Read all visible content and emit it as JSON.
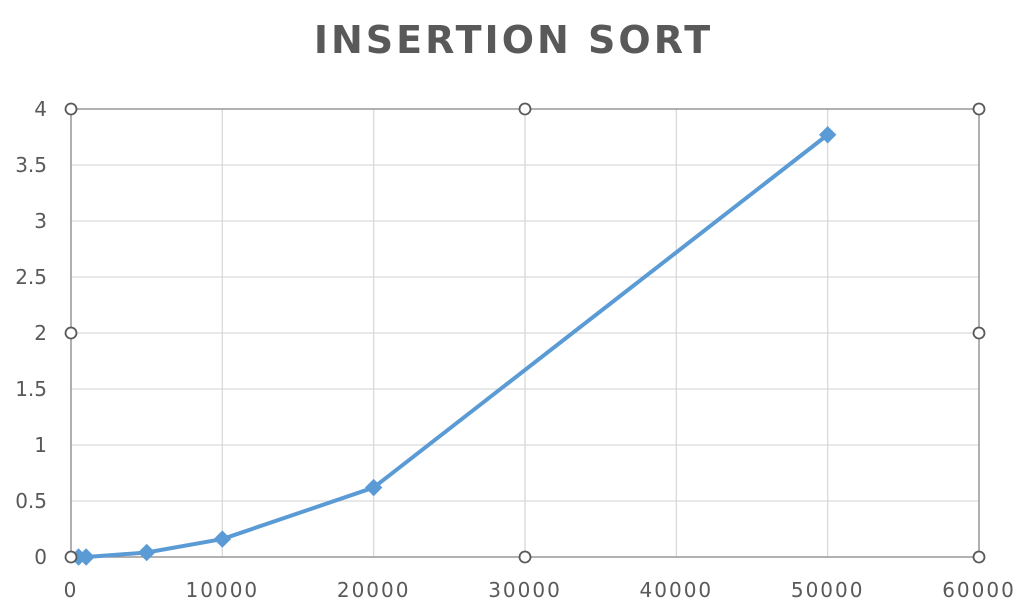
{
  "chart_data": {
    "type": "line",
    "title": "INSERTION SORT",
    "xlabel": "",
    "ylabel": "",
    "xlim": [
      0,
      60000
    ],
    "ylim": [
      0,
      4
    ],
    "x_ticks": [
      "0",
      "10000",
      "20000",
      "30000",
      "40000",
      "50000",
      "60000"
    ],
    "y_ticks": [
      "0",
      "0.5",
      "1",
      "1.5",
      "2",
      "2.5",
      "3",
      "3.5",
      "4"
    ],
    "grid": true,
    "legend": "none",
    "series": [
      {
        "color": "#5B9BD5",
        "marker": "diamond",
        "points": [
          {
            "x": 500,
            "y": 0.0
          },
          {
            "x": 1000,
            "y": 0.0
          },
          {
            "x": 5000,
            "y": 0.04
          },
          {
            "x": 10000,
            "y": 0.16
          },
          {
            "x": 20000,
            "y": 0.62
          },
          {
            "x": 50000,
            "y": 3.77
          }
        ]
      }
    ]
  }
}
